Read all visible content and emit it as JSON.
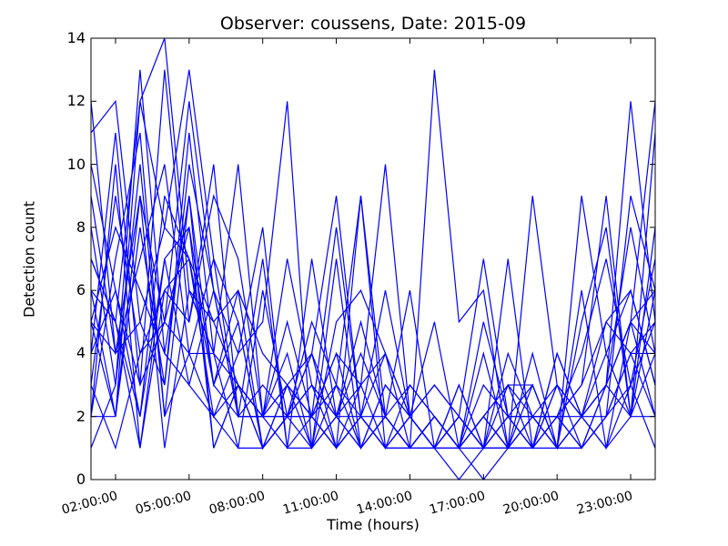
{
  "chart_data": {
    "type": "line",
    "title": "Observer: coussens, Date: 2015-09",
    "xlabel": "Time (hours)",
    "ylabel": "Detection count",
    "x": [
      "01:00:00",
      "02:00:00",
      "03:00:00",
      "04:00:00",
      "05:00:00",
      "06:00:00",
      "07:00:00",
      "08:00:00",
      "09:00:00",
      "10:00:00",
      "11:00:00",
      "12:00:00",
      "13:00:00",
      "14:00:00",
      "15:00:00",
      "16:00:00",
      "17:00:00",
      "18:00:00",
      "19:00:00",
      "20:00:00",
      "21:00:00",
      "22:00:00",
      "23:00:00",
      "24:00:00"
    ],
    "xticks": [
      "02:00:00",
      "05:00:00",
      "08:00:00",
      "11:00:00",
      "14:00:00",
      "17:00:00",
      "20:00:00",
      "23:00:00"
    ],
    "yticks": [
      "0",
      "2",
      "4",
      "6",
      "8",
      "10",
      "12",
      "14"
    ],
    "ylim": [
      0,
      14
    ],
    "grid": false,
    "line_color": "#0000ff",
    "series": [
      {
        "values": [
          11,
          12,
          5,
          8,
          7,
          5,
          3,
          2,
          3,
          2,
          1,
          2,
          1,
          2,
          1,
          1,
          0,
          1,
          2,
          1,
          2,
          3,
          5,
          6
        ]
      },
      {
        "values": [
          2,
          2,
          12,
          14,
          6,
          4,
          3,
          1,
          2,
          3,
          2,
          1,
          3,
          2,
          1,
          0,
          1,
          2,
          1,
          1,
          2,
          1,
          2,
          4
        ]
      },
      {
        "values": [
          5,
          4,
          9,
          5,
          12,
          6,
          2,
          2,
          2,
          1,
          2,
          3,
          4,
          2,
          1,
          2,
          1,
          1,
          3,
          1,
          1,
          2,
          4,
          5
        ]
      },
      {
        "values": [
          4,
          11,
          3,
          13,
          5,
          9,
          7,
          2,
          3,
          4,
          2,
          2,
          1,
          1,
          2,
          1,
          2,
          1,
          1,
          3,
          2,
          3,
          5,
          12
        ]
      },
      {
        "values": [
          10,
          6,
          2,
          9,
          7,
          2,
          4,
          5,
          12,
          1,
          3,
          1,
          2,
          1,
          1,
          2,
          1,
          1,
          2,
          1,
          2,
          4,
          6,
          3
        ]
      },
      {
        "values": [
          7,
          5,
          12,
          8,
          13,
          7,
          5,
          1,
          3,
          2,
          1,
          9,
          2,
          1,
          2,
          1,
          1,
          3,
          1,
          2,
          1,
          3,
          8,
          4
        ]
      },
      {
        "values": [
          3,
          9,
          4,
          6,
          5,
          10,
          2,
          3,
          2,
          4,
          9,
          2,
          1,
          1,
          13,
          5,
          6,
          1,
          4,
          1,
          1,
          2,
          3,
          5
        ]
      },
      {
        "values": [
          6,
          2,
          8,
          3,
          10,
          6,
          4,
          8,
          1,
          7,
          2,
          5,
          2,
          3,
          2,
          1,
          4,
          1,
          2,
          1,
          9,
          4,
          2,
          6
        ]
      },
      {
        "values": [
          8,
          3,
          10,
          2,
          9,
          3,
          6,
          1,
          2,
          3,
          1,
          3,
          10,
          2,
          3,
          2,
          1,
          7,
          1,
          3,
          2,
          1,
          5,
          4
        ]
      },
      {
        "values": [
          5,
          8,
          6,
          4,
          9,
          1,
          3,
          2,
          4,
          1,
          7,
          1,
          2,
          1,
          2,
          1,
          2,
          1,
          1,
          2,
          3,
          9,
          2,
          11
        ]
      },
      {
        "values": [
          2,
          10,
          1,
          7,
          8,
          3,
          5,
          1,
          3,
          2,
          1,
          2,
          6,
          2,
          5,
          1,
          2,
          3,
          2,
          3,
          1,
          2,
          4,
          2
        ]
      },
      {
        "values": [
          9,
          4,
          7,
          10,
          4,
          7,
          2,
          2,
          2,
          5,
          3,
          9,
          1,
          2,
          1,
          3,
          1,
          2,
          3,
          1,
          6,
          1,
          3,
          7
        ]
      },
      {
        "values": [
          4,
          6,
          3,
          5,
          4,
          4,
          10,
          2,
          5,
          2,
          4,
          1,
          3,
          2,
          1,
          2,
          1,
          1,
          1,
          4,
          2,
          3,
          12,
          5
        ]
      },
      {
        "values": [
          1,
          3,
          13,
          4,
          3,
          2,
          1,
          6,
          2,
          2,
          8,
          2,
          4,
          1,
          2,
          1,
          5,
          2,
          2,
          2,
          3,
          5,
          4,
          4
        ]
      },
      {
        "values": [
          7,
          5,
          1,
          6,
          7,
          3,
          2,
          2,
          7,
          3,
          2,
          4,
          2,
          6,
          1,
          1,
          3,
          2,
          1,
          2,
          4,
          7,
          3,
          1
        ]
      },
      {
        "values": [
          3,
          1,
          4,
          5,
          8,
          1,
          3,
          2,
          1,
          1,
          2,
          1,
          2,
          1,
          1,
          2,
          1,
          4,
          2,
          2,
          1,
          3,
          2,
          2
        ]
      },
      {
        "values": [
          12,
          4,
          5,
          3,
          11,
          4,
          1,
          1,
          2,
          2,
          4,
          3,
          1,
          3,
          2,
          1,
          2,
          1,
          9,
          3,
          2,
          5,
          6,
          3
        ]
      },
      {
        "values": [
          5,
          2,
          9,
          1,
          6,
          5,
          6,
          4,
          3,
          1,
          5,
          6,
          4,
          2,
          3,
          2,
          7,
          2,
          1,
          4,
          2,
          2,
          9,
          6
        ]
      },
      {
        "values": [
          6,
          5,
          2,
          7,
          3,
          6,
          2,
          7,
          1,
          2,
          3,
          2,
          2,
          1,
          2,
          1,
          2,
          3,
          3,
          1,
          5,
          8,
          2,
          8
        ]
      },
      {
        "values": [
          2,
          7,
          11,
          2,
          4,
          2,
          3,
          1,
          2,
          4,
          1,
          2,
          1,
          2,
          1,
          3,
          1,
          2,
          2,
          2,
          2,
          3,
          5,
          2
        ]
      }
    ]
  }
}
